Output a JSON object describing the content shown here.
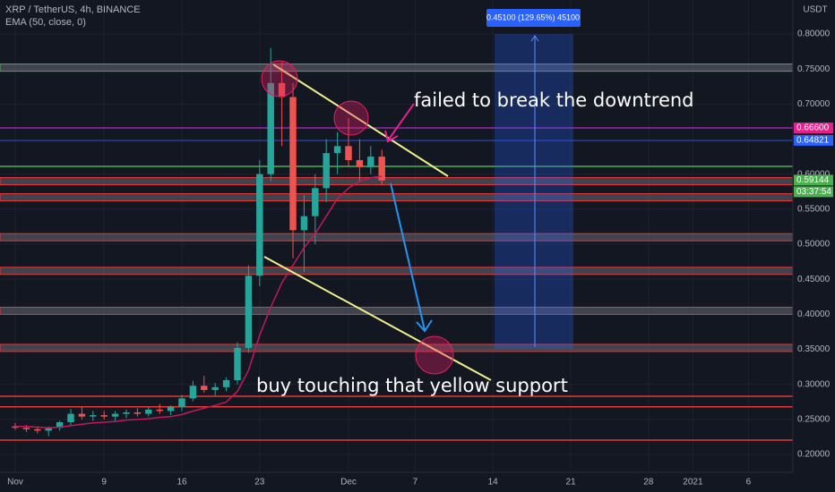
{
  "chart_data": {
    "type": "candlestick",
    "title": "XRP / TetherUS, 4h, BINANCE",
    "subtitle": "EMA (50, close, 0)",
    "y_axis_label": "USDT",
    "x": [
      0,
      1,
      2,
      3,
      4,
      5,
      6,
      7,
      8,
      9,
      10,
      11,
      12,
      13,
      14,
      15,
      16,
      17,
      18,
      19,
      20,
      21,
      22,
      23,
      24,
      25,
      26,
      27,
      28,
      29,
      30,
      31,
      32,
      33
    ],
    "open": [
      0.24,
      0.238,
      0.236,
      0.234,
      0.238,
      0.246,
      0.258,
      0.254,
      0.256,
      0.254,
      0.258,
      0.26,
      0.258,
      0.264,
      0.262,
      0.268,
      0.28,
      0.298,
      0.292,
      0.296,
      0.306,
      0.352,
      0.455,
      0.6,
      0.73,
      0.71,
      0.52,
      0.54,
      0.58,
      0.63,
      0.64,
      0.62,
      0.61,
      0.625
    ],
    "high": [
      0.245,
      0.242,
      0.24,
      0.24,
      0.248,
      0.265,
      0.268,
      0.262,
      0.262,
      0.262,
      0.264,
      0.266,
      0.268,
      0.272,
      0.27,
      0.285,
      0.305,
      0.312,
      0.302,
      0.31,
      0.36,
      0.47,
      0.62,
      0.78,
      0.76,
      0.73,
      0.57,
      0.6,
      0.65,
      0.66,
      0.68,
      0.65,
      0.64,
      0.635
    ],
    "low": [
      0.235,
      0.232,
      0.23,
      0.226,
      0.234,
      0.242,
      0.25,
      0.248,
      0.25,
      0.248,
      0.252,
      0.254,
      0.254,
      0.258,
      0.256,
      0.262,
      0.276,
      0.288,
      0.284,
      0.29,
      0.3,
      0.345,
      0.44,
      0.59,
      0.64,
      0.48,
      0.46,
      0.5,
      0.56,
      0.6,
      0.61,
      0.59,
      0.6,
      0.585
    ],
    "close": [
      0.238,
      0.236,
      0.234,
      0.238,
      0.246,
      0.258,
      0.254,
      0.256,
      0.254,
      0.258,
      0.26,
      0.258,
      0.264,
      0.262,
      0.268,
      0.28,
      0.298,
      0.292,
      0.296,
      0.306,
      0.352,
      0.455,
      0.6,
      0.73,
      0.71,
      0.52,
      0.54,
      0.58,
      0.63,
      0.64,
      0.62,
      0.61,
      0.625,
      0.591
    ],
    "up_color": "#26a69a",
    "down_color": "#ef5350",
    "ema": {
      "color": "#c2185b",
      "values": [
        0.24,
        0.24,
        0.239,
        0.238,
        0.239,
        0.241,
        0.243,
        0.245,
        0.246,
        0.247,
        0.249,
        0.25,
        0.251,
        0.253,
        0.254,
        0.257,
        0.262,
        0.266,
        0.27,
        0.275,
        0.29,
        0.32,
        0.37,
        0.41,
        0.445,
        0.47,
        0.495,
        0.515,
        0.54,
        0.565,
        0.58,
        0.59,
        0.595,
        0.597
      ]
    },
    "xlim": [
      -1.371,
      70
    ],
    "ylim": [
      0.1745,
      0.8485
    ],
    "xticks": [
      {
        "value": 0,
        "label": "Nov"
      },
      {
        "value": 8,
        "label": "9"
      },
      {
        "value": 15,
        "label": "16"
      },
      {
        "value": 22,
        "label": "23"
      },
      {
        "value": 30,
        "label": "Dec"
      },
      {
        "value": 36,
        "label": "7"
      },
      {
        "value": 43,
        "label": "14"
      },
      {
        "value": 50,
        "label": "21"
      },
      {
        "value": 57,
        "label": "28"
      },
      {
        "value": 61,
        "label": "2021"
      },
      {
        "value": 66,
        "label": "6"
      }
    ],
    "yticks": [
      {
        "value": 0.8,
        "label": "0.80000"
      },
      {
        "value": 0.75,
        "label": "0.75000"
      },
      {
        "value": 0.7,
        "label": "0.70000"
      },
      {
        "value": 0.6,
        "label": "0.60000"
      },
      {
        "value": 0.55,
        "label": "0.55000"
      },
      {
        "value": 0.5,
        "label": "0.50000"
      },
      {
        "value": 0.45,
        "label": "0.45000"
      },
      {
        "value": 0.4,
        "label": "0.40000"
      },
      {
        "value": 0.35,
        "label": "0.35000"
      },
      {
        "value": 0.3,
        "label": "0.30000"
      },
      {
        "value": 0.25,
        "label": "0.25000"
      },
      {
        "value": 0.2,
        "label": "0.20000"
      }
    ],
    "grid": true,
    "levels": [
      {
        "value": 0.752,
        "color": "#4caf50",
        "band": true
      },
      {
        "value": 0.611,
        "color": "#4caf50",
        "band": false
      },
      {
        "value": 0.59,
        "color": "#e53935",
        "band": true
      },
      {
        "value": 0.567,
        "color": "#e53935",
        "band": true
      },
      {
        "value": 0.51,
        "color": "#e53935",
        "band": true
      },
      {
        "value": 0.462,
        "color": "#e53935",
        "band": true
      },
      {
        "value": 0.405,
        "color": "#e53935",
        "band": true
      },
      {
        "value": 0.352,
        "color": "#e53935",
        "band": true
      },
      {
        "value": 0.283,
        "color": "#e53935",
        "band": false
      },
      {
        "value": 0.268,
        "color": "#e53935",
        "band": false
      },
      {
        "value": 0.2205,
        "color": "#e53935",
        "band": false
      },
      {
        "value": 0.666,
        "color": "#9c27b0",
        "band": false
      },
      {
        "value": 0.648,
        "color": "#1e3ea8",
        "band": false
      }
    ],
    "price_labels": [
      {
        "value": 0.666,
        "label": "0.66600",
        "color": "#e91e8c"
      },
      {
        "value": 0.64821,
        "label": "0.64821",
        "color": "#2962ff"
      },
      {
        "value": 0.59144,
        "label": "0.59144",
        "color": "#4caf50"
      }
    ],
    "countdown": "03:37:54",
    "measure_label": "0.45100 (129.65%) 45100",
    "annotations": [
      "failed to break the downtrend",
      "buy touching that yellow support"
    ]
  }
}
